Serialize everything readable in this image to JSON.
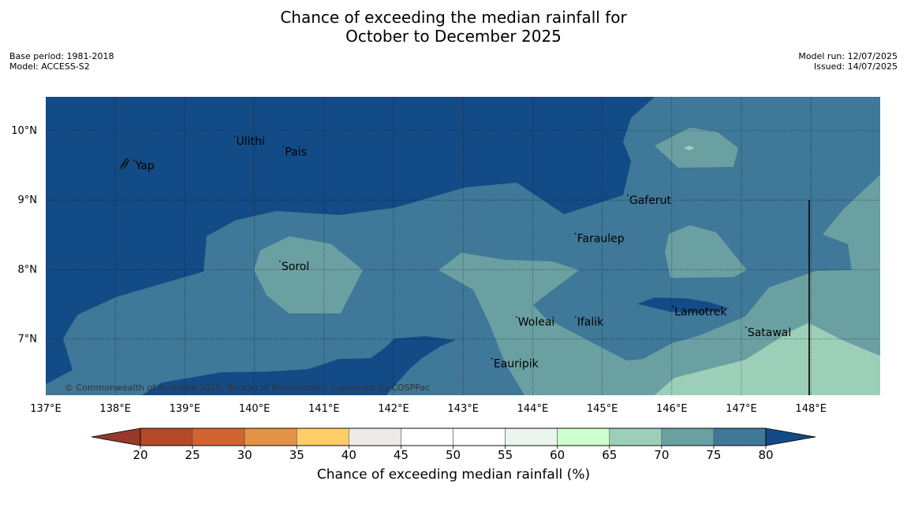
{
  "title_line1": "Chance of exceeding the median rainfall for",
  "title_line2": "October to December 2025",
  "meta_left": {
    "base_period": "Base period: 1981-2018",
    "model": "Model: ACCESS-S2"
  },
  "meta_right": {
    "model_run": "Model run: 12/07/2025",
    "issued": "Issued: 14/07/2025"
  },
  "copyright": "© Commonwealth of Australia 2025, Bureau of Meteorology, supported by COSPPac",
  "colors": {
    "c75_80": "#134b86",
    "c70_75": "#3f7898",
    "c65_70": "#6ba0a2",
    "c60_65": "#9dcfb8",
    "c55_60": "#ccffcc",
    "land": "#111111",
    "grid": "#111111",
    "axis_text": "#000000"
  },
  "map": {
    "lon_ticks": [
      "137°E",
      "138°E",
      "139°E",
      "140°E",
      "141°E",
      "142°E",
      "143°E",
      "144°E",
      "145°E",
      "146°E",
      "147°E",
      "148°E"
    ],
    "lat_ticks": [
      "10°N",
      "9°N",
      "8°N",
      "7°N"
    ],
    "places": [
      {
        "name": "Yap",
        "lon": 138.3,
        "lat": 9.5
      },
      {
        "name": "Ulithi",
        "lon": 139.75,
        "lat": 9.85
      },
      {
        "name": "Pais",
        "lon": 140.45,
        "lat": 9.7
      },
      {
        "name": "Gaferut",
        "lon": 145.4,
        "lat": 9.0
      },
      {
        "name": "Faraulep",
        "lon": 144.65,
        "lat": 8.45
      },
      {
        "name": "Sorol",
        "lon": 140.4,
        "lat": 8.05
      },
      {
        "name": "Lamotrek",
        "lon": 146.05,
        "lat": 7.4
      },
      {
        "name": "Woleai",
        "lon": 143.8,
        "lat": 7.25
      },
      {
        "name": "Ifalik",
        "lon": 144.65,
        "lat": 7.25
      },
      {
        "name": "Satawal",
        "lon": 147.1,
        "lat": 7.1
      },
      {
        "name": "Eauripik",
        "lon": 143.45,
        "lat": 6.65
      }
    ]
  },
  "colorbar": {
    "ticks": [
      "20",
      "25",
      "30",
      "35",
      "40",
      "45",
      "50",
      "55",
      "60",
      "65",
      "70",
      "75",
      "80"
    ],
    "colors": [
      "#b34a27",
      "#d26431",
      "#e39346",
      "#fecd6a",
      "#eeebe6",
      "#ffffff",
      "#ffffff",
      "#eaf6ec",
      "#ccffcc",
      "#9dcfb8",
      "#6ba0a2",
      "#3f7898"
    ],
    "under_color": "#96392a",
    "over_color": "#134b86",
    "label": "Chance of exceeding median rainfall (%)"
  }
}
